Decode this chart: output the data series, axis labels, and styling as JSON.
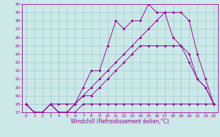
{
  "xlabel": "Windchill (Refroidissement éolien,°C)",
  "xlim": [
    -0.5,
    23.5
  ],
  "ylim": [
    17,
    30
  ],
  "yticks": [
    17,
    18,
    19,
    20,
    21,
    22,
    23,
    24,
    25,
    26,
    27,
    28,
    29,
    30
  ],
  "xticks": [
    0,
    1,
    2,
    3,
    4,
    5,
    6,
    7,
    8,
    9,
    10,
    11,
    12,
    13,
    14,
    15,
    16,
    17,
    18,
    19,
    20,
    21,
    22,
    23
  ],
  "bg_color": "#cce8e8",
  "grid_color": "#99cccc",
  "line_color": "#990099",
  "series": [
    {
      "x": [
        0,
        1,
        2,
        3,
        4,
        5,
        6,
        7,
        8,
        9,
        10,
        11,
        12,
        13,
        14,
        15,
        16,
        17,
        18,
        19,
        20,
        21,
        22,
        23
      ],
      "y": [
        18,
        17,
        17,
        18,
        17,
        17,
        17,
        18,
        18,
        18,
        18,
        18,
        18,
        18,
        18,
        18,
        18,
        18,
        18,
        18,
        18,
        18,
        18,
        18
      ]
    },
    {
      "x": [
        0,
        1,
        2,
        3,
        4,
        5,
        6,
        7,
        8,
        9,
        10,
        11,
        12,
        13,
        14,
        15,
        16,
        17,
        18,
        19,
        20,
        21,
        22,
        23
      ],
      "y": [
        18,
        17,
        17,
        18,
        17,
        17,
        18,
        19,
        19,
        20,
        21,
        22,
        23,
        24,
        25,
        25,
        25,
        25,
        25,
        25,
        24,
        21,
        20,
        18
      ]
    },
    {
      "x": [
        0,
        1,
        2,
        3,
        4,
        5,
        6,
        7,
        8,
        9,
        10,
        11,
        12,
        13,
        14,
        15,
        16,
        17,
        18,
        19,
        20,
        21,
        22,
        23
      ],
      "y": [
        18,
        17,
        17,
        18,
        17,
        17,
        18,
        20,
        22,
        22,
        25,
        28,
        27,
        28,
        28,
        30,
        29,
        29,
        26,
        25,
        23,
        21,
        20,
        18
      ]
    },
    {
      "x": [
        0,
        1,
        2,
        3,
        4,
        5,
        6,
        7,
        8,
        9,
        10,
        11,
        12,
        13,
        14,
        15,
        16,
        17,
        18,
        19,
        20,
        21,
        22,
        23
      ],
      "y": [
        18,
        17,
        17,
        18,
        18,
        18,
        18,
        19,
        20,
        21,
        22,
        23,
        24,
        25,
        26,
        27,
        28,
        29,
        29,
        29,
        28,
        24,
        21,
        18
      ]
    }
  ]
}
